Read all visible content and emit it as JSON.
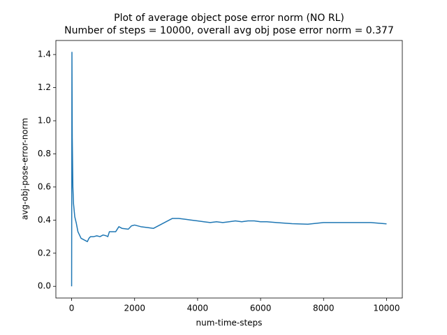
{
  "chart_data": {
    "type": "line",
    "title": "Plot of average object pose error norm (NO RL)",
    "subtitle": "Number of steps = 10000, overall avg obj pose error norm = 0.377",
    "x_label": "num-time-steps",
    "y_label": "avg-obj-pose-error-norm",
    "x": [
      0,
      10,
      20,
      40,
      60,
      100,
      150,
      200,
      300,
      400,
      500,
      550,
      600,
      700,
      800,
      900,
      1000,
      1100,
      1150,
      1200,
      1400,
      1500,
      1600,
      1800,
      1900,
      2000,
      2200,
      2400,
      2600,
      2800,
      3000,
      3200,
      3400,
      3600,
      3800,
      4000,
      4200,
      4400,
      4600,
      4800,
      5000,
      5200,
      5400,
      5600,
      5800,
      6000,
      6200,
      6500,
      7000,
      7500,
      8000,
      8500,
      9000,
      9500,
      10000
    ],
    "series": [
      {
        "name": "avg-obj-pose-error-norm",
        "color": "#1f77b4",
        "values": [
          0,
          1.414,
          0.9,
          0.6,
          0.5,
          0.42,
          0.38,
          0.33,
          0.29,
          0.28,
          0.27,
          0.29,
          0.3,
          0.3,
          0.305,
          0.3,
          0.31,
          0.305,
          0.3,
          0.33,
          0.33,
          0.36,
          0.35,
          0.345,
          0.365,
          0.37,
          0.36,
          0.355,
          0.35,
          0.37,
          0.39,
          0.41,
          0.41,
          0.405,
          0.4,
          0.395,
          0.39,
          0.385,
          0.39,
          0.385,
          0.39,
          0.395,
          0.39,
          0.395,
          0.395,
          0.39,
          0.39,
          0.385,
          0.378,
          0.375,
          0.385,
          0.385,
          0.385,
          0.385,
          0.377
        ]
      }
    ],
    "xlim": [
      -500,
      10500
    ],
    "xticks": [
      0,
      2000,
      4000,
      6000,
      8000,
      10000
    ],
    "ylim": [
      -0.0707,
      1.4849
    ],
    "yticks": [
      {
        "value": 0,
        "label": "0.0"
      },
      0.2,
      0.4,
      0.6,
      0.8,
      {
        "value": 1,
        "label": "1.0"
      },
      1.2,
      1.4
    ],
    "grid": false
  }
}
